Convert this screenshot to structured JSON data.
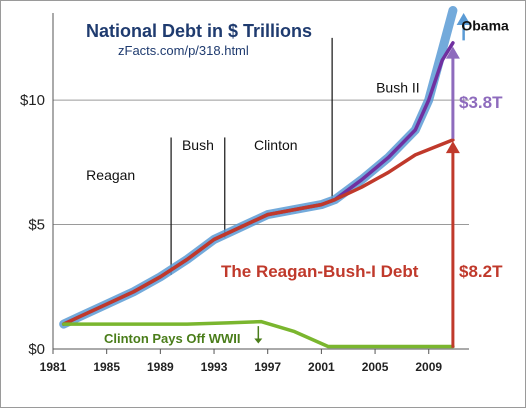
{
  "chart_data": {
    "type": "line",
    "title": "National Debt in $ Trillions",
    "subtitle": "zFacts.com/p/318.html",
    "xlim": [
      1981,
      2012
    ],
    "ylim": [
      0,
      13.5
    ],
    "x_ticks": [
      "1981",
      "1985",
      "1989",
      "1993",
      "1997",
      "2001",
      "2005",
      "2009"
    ],
    "y_ticks": [
      {
        "value": 0,
        "label": "$0"
      },
      {
        "value": 5,
        "label": "$5"
      },
      {
        "value": 10,
        "label": "$10"
      }
    ],
    "grid": true,
    "series": [
      {
        "color": "#5b9bd5",
        "x": [
          1981.8,
          1983,
          1985,
          1987,
          1989,
          1991,
          1993,
          1995,
          1997,
          1999,
          2001,
          2002,
          2004,
          2006,
          2008,
          2009,
          2010,
          2010.8
        ],
        "y": [
          1.0,
          1.3,
          1.8,
          2.3,
          2.9,
          3.6,
          4.4,
          4.9,
          5.4,
          5.6,
          5.8,
          6.0,
          6.8,
          7.7,
          8.8,
          10.0,
          12.0,
          13.6
        ]
      },
      {
        "color": "#7030a0",
        "x": [
          1981.8,
          1983,
          1985,
          1987,
          1989,
          1991,
          1993,
          1995,
          1997,
          1999,
          2001,
          2002,
          2004,
          2006,
          2008,
          2009,
          2010,
          2010.8
        ],
        "y": [
          1.0,
          1.3,
          1.8,
          2.3,
          2.9,
          3.6,
          4.4,
          4.9,
          5.4,
          5.6,
          5.8,
          6.0,
          6.8,
          7.7,
          8.8,
          10.0,
          11.6,
          12.3
        ]
      },
      {
        "color": "#c0392b",
        "x": [
          1981.8,
          1983,
          1985,
          1987,
          1989,
          1991,
          1993,
          1995,
          1997,
          1999,
          2001,
          2002,
          2004,
          2006,
          2008,
          2010.8
        ],
        "y": [
          1.0,
          1.3,
          1.8,
          2.3,
          2.9,
          3.6,
          4.4,
          4.9,
          5.4,
          5.6,
          5.8,
          6.0,
          6.5,
          7.1,
          7.8,
          8.4
        ]
      },
      {
        "color": "#7ab62e",
        "x": [
          1981.8,
          1989,
          1991,
          1994,
          1996.5,
          1999,
          2001.5,
          2010.8
        ],
        "y": [
          1.0,
          1.0,
          1.0,
          1.05,
          1.1,
          0.7,
          0.1,
          0.1
        ]
      }
    ],
    "era_dividers": [
      1989.8,
      1993.8,
      2001.8
    ],
    "era_labels": [
      {
        "text": "Reagan",
        "x": 1985.3,
        "y": 6.8
      },
      {
        "text": "Bush",
        "x": 1991.8,
        "y": 8.0
      },
      {
        "text": "Clinton",
        "x": 1997.6,
        "y": 8.0
      },
      {
        "text": "Bush II",
        "x": 2006.7,
        "y": 10.3
      },
      {
        "text": "Obama",
        "x": 2013.2,
        "y": 12.8
      }
    ],
    "annotations": {
      "reagan_bush_debt": "The Reagan-Bush-I Debt",
      "clinton_wwii": "Clinton Pays Off WWII",
      "red_amount": "$8.2T",
      "purple_amount": "$3.8T"
    },
    "colors": {
      "blue": "#5b9bd5",
      "purple": "#7030a0",
      "red": "#c0392b",
      "green": "#7ab62e",
      "purple_label": "#8e6bbd",
      "title": "#1f3b6f"
    }
  }
}
